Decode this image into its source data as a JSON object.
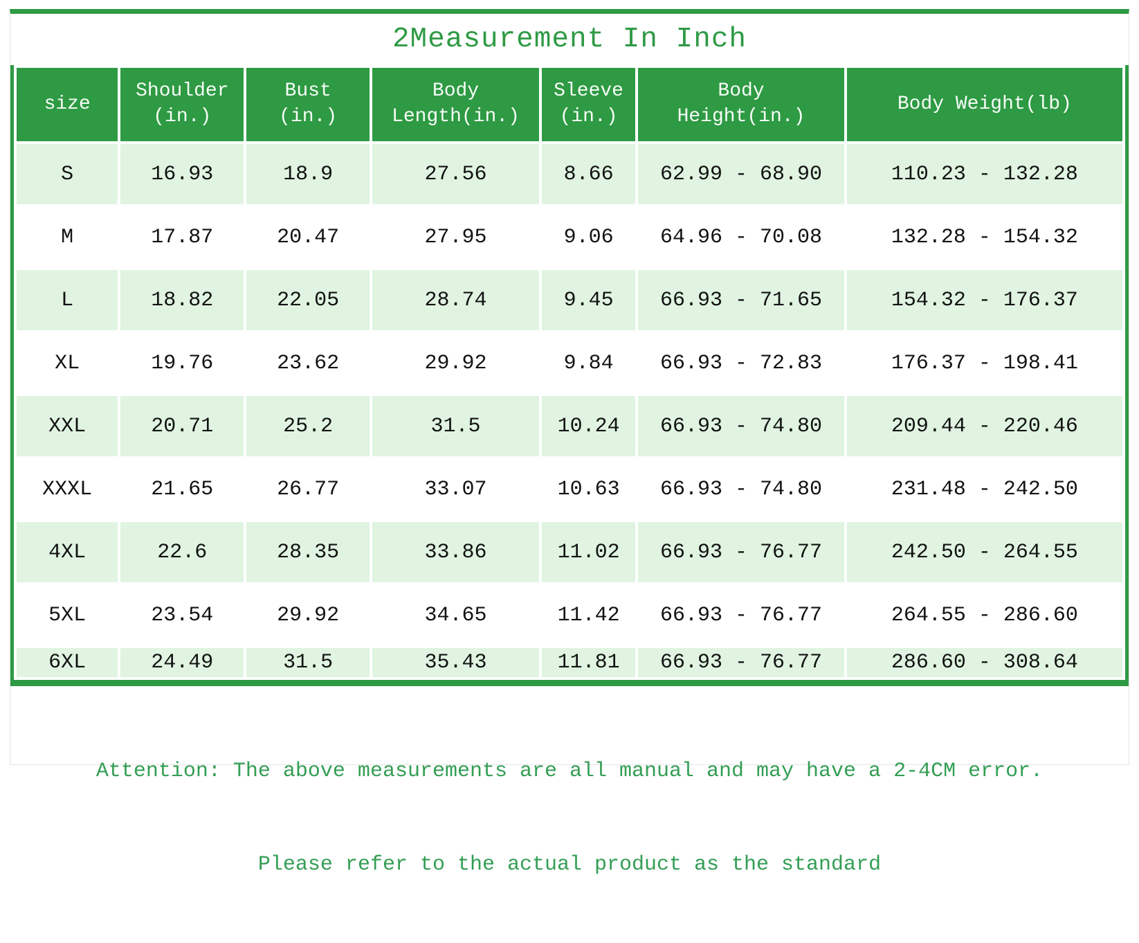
{
  "title": "2Measurement In Inch",
  "colors": {
    "accent_green": "#2e9a43",
    "row_tint_green": "#e0f4e1",
    "title_text_green": "#2e9a44",
    "note_text_green": "#339e54",
    "header_text": "#f7fcf7",
    "cell_text": "#121212"
  },
  "chart_data": {
    "type": "table",
    "title": "2Measurement In Inch",
    "columns": [
      [
        "size"
      ],
      [
        "Shoulder",
        "(in.)"
      ],
      [
        "Bust",
        "(in.)"
      ],
      [
        "Body",
        "Length(in.)"
      ],
      [
        "Sleeve",
        "(in.)"
      ],
      [
        "Body",
        "Height(in.)"
      ],
      [
        "Body Weight(lb)"
      ]
    ],
    "rows": [
      [
        "S",
        "16.93",
        "18.9",
        "27.56",
        "8.66",
        "62.99 - 68.90",
        "110.23 - 132.28"
      ],
      [
        "M",
        "17.87",
        "20.47",
        "27.95",
        "9.06",
        "64.96 - 70.08",
        "132.28 - 154.32"
      ],
      [
        "L",
        "18.82",
        "22.05",
        "28.74",
        "9.45",
        "66.93 - 71.65",
        "154.32 - 176.37"
      ],
      [
        "XL",
        "19.76",
        "23.62",
        "29.92",
        "9.84",
        "66.93 - 72.83",
        "176.37 - 198.41"
      ],
      [
        "XXL",
        "20.71",
        "25.2",
        "31.5",
        "10.24",
        "66.93 - 74.80",
        "209.44 - 220.46"
      ],
      [
        "XXXL",
        "21.65",
        "26.77",
        "33.07",
        "10.63",
        "66.93 - 74.80",
        "231.48 - 242.50"
      ],
      [
        "4XL",
        "22.6",
        "28.35",
        "33.86",
        "11.02",
        "66.93 - 76.77",
        "242.50 - 264.55"
      ],
      [
        "5XL",
        "23.54",
        "29.92",
        "34.65",
        "11.42",
        "66.93 - 76.77",
        "264.55 - 286.60"
      ],
      [
        "6XL",
        "24.49",
        "31.5",
        "35.43",
        "11.81",
        "66.93 - 76.77",
        "286.60 - 308.64"
      ]
    ]
  },
  "attention": {
    "line1": "Attention: The above measurements are all manual and may have a 2-4CM error.",
    "line2": "Please refer to the actual product as the standard"
  }
}
